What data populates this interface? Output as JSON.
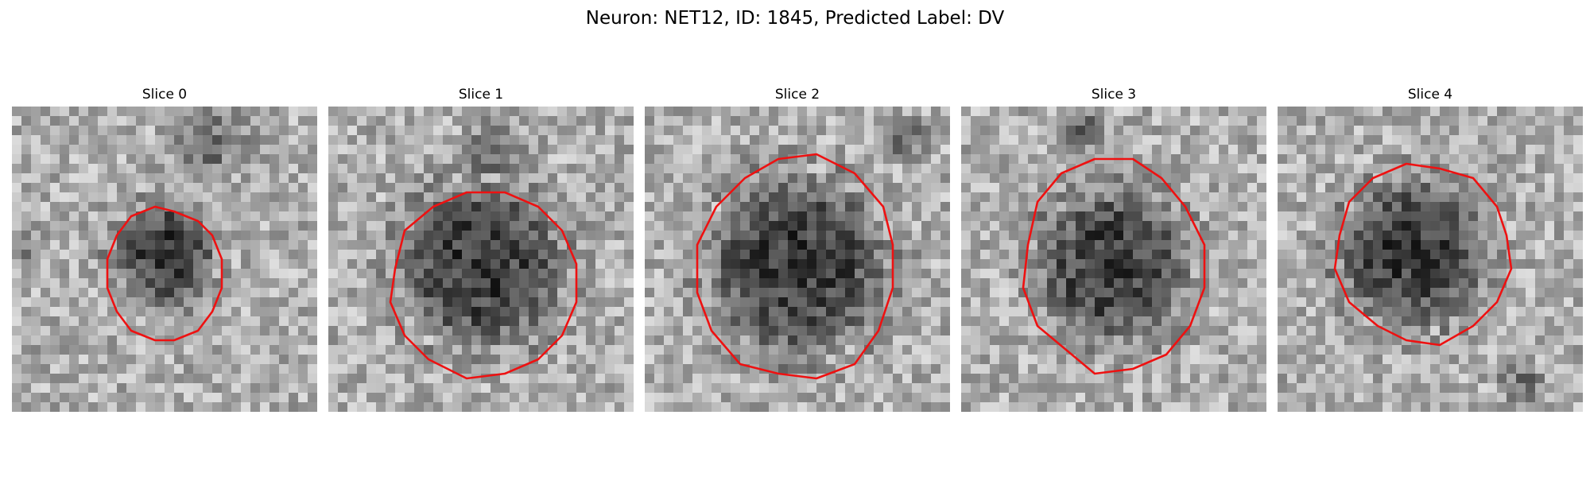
{
  "title": "Neuron: NET12, ID: 1845, Predicted Label: DV",
  "contour_color": "#ee1111",
  "panels": [
    {
      "label": "Slice 0",
      "seed": 11,
      "dark_center": [
        0.5,
        0.48
      ],
      "dark_radius": 0.19,
      "extra_dark": [
        [
          0.65,
          0.12,
          0.16
        ],
        [
          0.05,
          0.48,
          0.07
        ]
      ],
      "contour_center": [
        0.5,
        0.55
      ],
      "contour_radius": [
        0.19,
        0.22
      ]
    },
    {
      "label": "Slice 1",
      "seed": 23,
      "dark_center": [
        0.5,
        0.52
      ],
      "dark_radius": 0.3,
      "extra_dark": [
        [
          0.55,
          0.12,
          0.12
        ]
      ],
      "contour_center": [
        0.51,
        0.58
      ],
      "contour_radius": [
        0.31,
        0.3
      ]
    },
    {
      "label": "Slice 2",
      "seed": 37,
      "dark_center": [
        0.5,
        0.52
      ],
      "dark_radius": 0.33,
      "extra_dark": [
        [
          0.85,
          0.1,
          0.1
        ]
      ],
      "contour_center": [
        0.5,
        0.53
      ],
      "contour_radius": [
        0.33,
        0.37
      ]
    },
    {
      "label": "Slice 3",
      "seed": 41,
      "dark_center": [
        0.5,
        0.52
      ],
      "dark_radius": 0.28,
      "extra_dark": [
        [
          0.4,
          0.06,
          0.1
        ]
      ],
      "contour_center": [
        0.5,
        0.52
      ],
      "contour_radius": [
        0.3,
        0.35
      ]
    },
    {
      "label": "Slice 4",
      "seed": 53,
      "dark_center": [
        0.44,
        0.48
      ],
      "dark_radius": 0.27,
      "extra_dark": [
        [
          0.8,
          0.9,
          0.1
        ]
      ],
      "contour_center": [
        0.48,
        0.48
      ],
      "contour_radius": [
        0.29,
        0.29
      ]
    }
  ]
}
